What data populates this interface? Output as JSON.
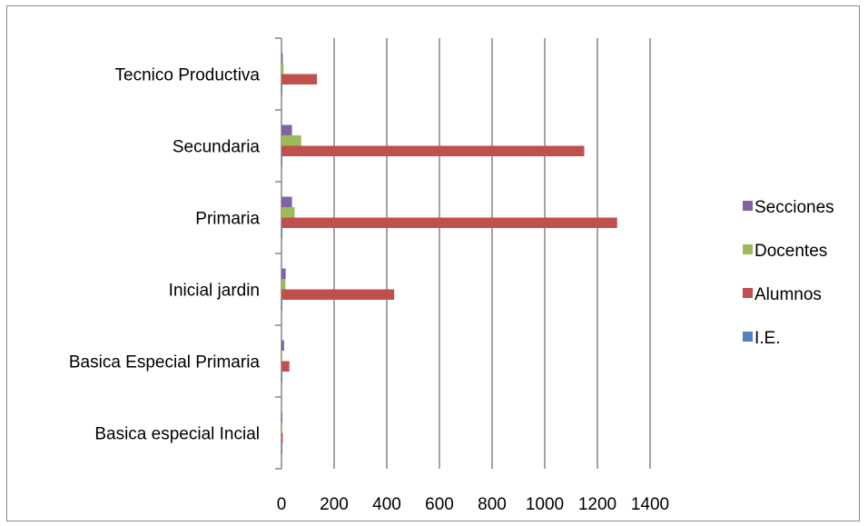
{
  "chart_data": {
    "type": "bar",
    "orientation": "horizontal",
    "title": "",
    "xlabel": "",
    "ylabel": "",
    "categories": [
      "Basica especial Incial",
      "Basica Especial Primaria",
      "Inicial jardin",
      "Primaria",
      "Secundaria",
      "Tecnico Productiva"
    ],
    "series": [
      {
        "name": "I.E.",
        "color": "#4f81bd",
        "values": [
          1,
          1,
          2,
          3,
          3,
          1
        ]
      },
      {
        "name": "Alumnos",
        "color": "#c0504d",
        "values": [
          5,
          30,
          428,
          1275,
          1150,
          135
        ]
      },
      {
        "name": "Docentes",
        "color": "#9bbb59",
        "values": [
          2,
          3,
          15,
          50,
          75,
          8
        ]
      },
      {
        "name": "Secciones",
        "color": "#8064a2",
        "values": [
          1,
          10,
          16,
          40,
          40,
          5
        ]
      }
    ],
    "xlim": [
      0,
      1400
    ],
    "xticks": [
      "0",
      "200",
      "400",
      "600",
      "800",
      "1000",
      "1200",
      "1400"
    ],
    "grid": true,
    "legend_position": "right",
    "legend_order": [
      "Secciones",
      "Docentes",
      "Alumnos",
      "I.E."
    ]
  }
}
